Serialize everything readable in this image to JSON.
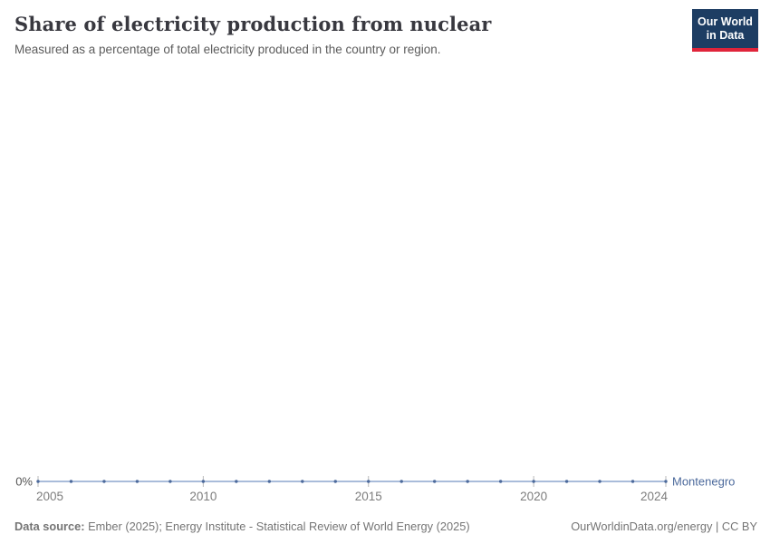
{
  "header": {
    "title": "Share of electricity production from nuclear",
    "subtitle": "Measured as a percentage of total electricity produced in the country or region."
  },
  "logo": {
    "line1": "Our World",
    "line2": "in Data",
    "background_color": "#1d3d63",
    "bar_color": "#e0243a"
  },
  "chart_data": {
    "type": "line",
    "title": "Share of electricity production from nuclear",
    "xlabel": "",
    "ylabel": "",
    "x": [
      2005,
      2006,
      2007,
      2008,
      2009,
      2010,
      2011,
      2012,
      2013,
      2014,
      2015,
      2016,
      2017,
      2018,
      2019,
      2020,
      2021,
      2022,
      2023,
      2024
    ],
    "series": [
      {
        "name": "Montenegro",
        "values": [
          0,
          0,
          0,
          0,
          0,
          0,
          0,
          0,
          0,
          0,
          0,
          0,
          0,
          0,
          0,
          0,
          0,
          0,
          0,
          0
        ],
        "color": "#4c6a9c",
        "line_color": "#a9bcda"
      }
    ],
    "x_ticks": [
      2005,
      2010,
      2015,
      2020,
      2024
    ],
    "y_ticks": [
      "0%"
    ],
    "ylim": [
      0,
      100
    ],
    "grid": false,
    "legend_position": "end-of-line",
    "unit": "%",
    "axis_text_color": "#7d7d7d",
    "zero_label_color": "#555555",
    "tick_color": "#b9b9b9"
  },
  "footer": {
    "datasource_label": "Data source:",
    "datasource_text": " Ember (2025); Energy Institute - Statistical Review of World Energy (2025)",
    "right_text": "OurWorldinData.org/energy | CC BY"
  }
}
